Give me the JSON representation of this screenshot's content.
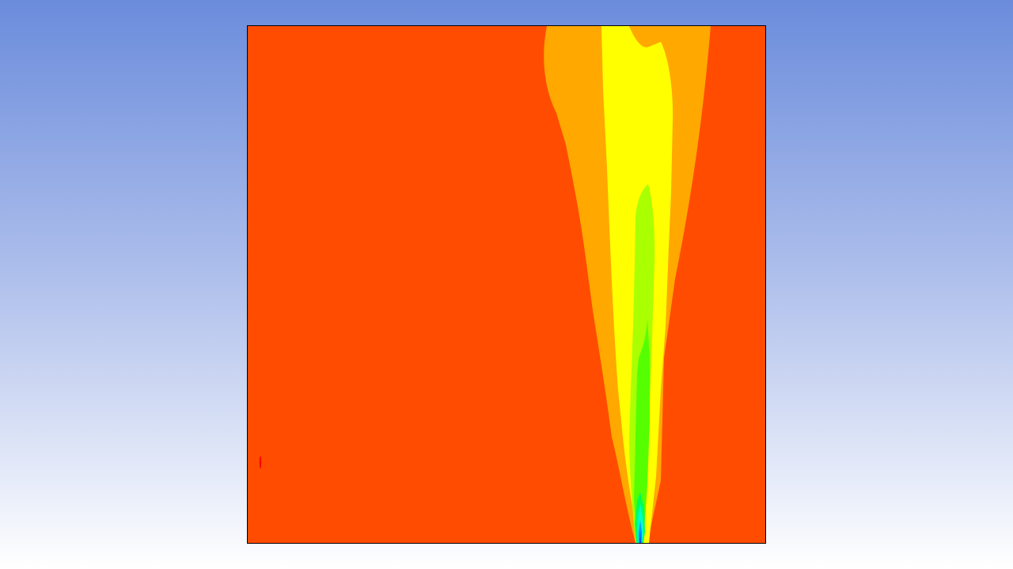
{
  "viewer": {
    "background_top": "#6b8cdc",
    "background_bottom": "#ffffff"
  },
  "contour": {
    "bands": [
      {
        "name": "band-base",
        "color": "#ff4c00"
      },
      {
        "name": "band-1",
        "color": "#ffa800"
      },
      {
        "name": "band-2",
        "color": "#ffff00"
      },
      {
        "name": "band-3",
        "color": "#aaff00"
      },
      {
        "name": "band-4",
        "color": "#55ff00"
      },
      {
        "name": "band-5",
        "color": "#00ff55"
      },
      {
        "name": "band-6",
        "color": "#00ffcc"
      },
      {
        "name": "band-7",
        "color": "#0099ff"
      },
      {
        "name": "band-8",
        "color": "#0044ff"
      },
      {
        "name": "band-spot",
        "color": "#ff0000"
      }
    ]
  }
}
